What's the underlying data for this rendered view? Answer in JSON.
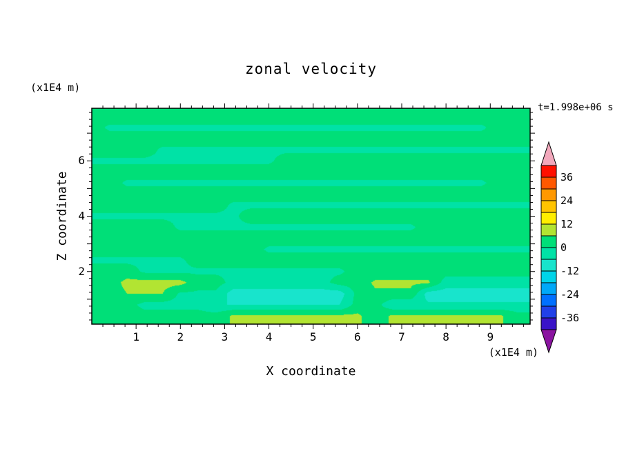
{
  "title": "zonal velocity",
  "time_label": "t=1.998e+06 s",
  "x_axis": {
    "label": "X coordinate",
    "unit": "(x1E4 m)",
    "ticks": [
      1,
      2,
      3,
      4,
      5,
      6,
      7,
      8,
      9
    ],
    "tick_labels": [
      "1",
      "2",
      "3",
      "4",
      "5",
      "6",
      "7",
      "8",
      "9"
    ],
    "minor_step": 0.25
  },
  "z_axis": {
    "label": "Z coordinate",
    "unit": "(x1E4 m)",
    "ticks": [
      2,
      4,
      6
    ],
    "tick_labels": [
      "2",
      "4",
      "6"
    ],
    "major_ticks": [
      1,
      2,
      3,
      4,
      5,
      6,
      7
    ],
    "minor_step": 0.25
  },
  "colorbar": {
    "labels": [
      "36",
      "24",
      "12",
      "0",
      "-12",
      "-24",
      "-36"
    ],
    "label_values": [
      36,
      24,
      12,
      0,
      -12,
      -24,
      -36
    ]
  },
  "colors": {
    "background": "#ffffff",
    "frame": "#000000",
    "text": "#000000"
  },
  "chart_data": {
    "type": "heatmap",
    "title": "zonal velocity",
    "xlabel": "X coordinate (x1E4 m)",
    "ylabel": "Z coordinate (x1E4 m)",
    "time": "t=1.998e+06 s",
    "xlim": [
      0,
      9.9
    ],
    "zlim": [
      0.1,
      7.9
    ],
    "levels": [
      -42,
      -36,
      -30,
      -24,
      -18,
      -12,
      -6,
      0,
      6,
      12,
      18,
      24,
      30,
      36,
      42
    ],
    "colors": [
      "#3a14c8",
      "#2040e8",
      "#0070ff",
      "#00a8f8",
      "#00d4e8",
      "#18e4cc",
      "#00e2a6",
      "#00df78",
      "#b2e432",
      "#ffee00",
      "#ffc400",
      "#ff9800",
      "#ff5800",
      "#ff1000"
    ],
    "under_color": "#8a14a0",
    "over_color": "#f2a8bc",
    "x": [
      0,
      0.4,
      0.8,
      1.2,
      1.6,
      2,
      2.4,
      2.8,
      3.2,
      3.6,
      4,
      4.4,
      4.8,
      5.2,
      5.6,
      6,
      6.4,
      6.8,
      7.2,
      7.6,
      8,
      8.4,
      8.8,
      9.2,
      9.6
    ],
    "z": [
      7.6,
      7.2,
      6.8,
      6.4,
      6,
      5.6,
      5.2,
      4.8,
      4.4,
      4,
      3.6,
      3.2,
      2.8,
      2.4,
      2,
      1.6,
      1.2,
      0.8,
      0.4
    ],
    "values": [
      [
        2.5,
        2.5,
        2.5,
        2.5,
        2.5,
        2.5,
        2.5,
        2.5,
        2.5,
        2.5,
        2.5,
        2.5,
        2.5,
        2.5,
        2.5,
        2.5,
        2.5,
        2.5,
        2.5,
        2.5,
        2.5,
        2.5,
        2.5,
        2.5,
        2.5
      ],
      [
        2.5,
        -1,
        -1,
        -1,
        -1,
        -1,
        -1,
        -1,
        -1,
        -1,
        -1,
        -1,
        -1,
        -1,
        -1,
        -1,
        -1,
        -1,
        -1,
        -1,
        -1,
        -1,
        -1,
        2.5,
        2.5
      ],
      [
        2.5,
        2.5,
        2.5,
        2.5,
        2.5,
        2.5,
        2.5,
        2.5,
        2.5,
        2.5,
        2.5,
        2.5,
        2.5,
        2.5,
        2.5,
        2.5,
        2.5,
        2.5,
        2.5,
        2.5,
        2.5,
        2.5,
        2.5,
        2.5,
        2.5
      ],
      [
        2.5,
        2.5,
        2.5,
        2.5,
        -1,
        -1,
        -1,
        -1,
        -1,
        -1,
        -1,
        -1,
        -1,
        -1,
        -1,
        -1,
        -1,
        -1,
        -1,
        -1,
        -1,
        -1,
        -1,
        -1,
        -1
      ],
      [
        -1,
        -1,
        -1,
        -1,
        -1,
        -1,
        -1,
        -1,
        -1,
        -1,
        -1,
        2.5,
        2.5,
        2.5,
        2.5,
        2.5,
        2.5,
        2.5,
        2.5,
        2.5,
        2.5,
        2.5,
        2.5,
        2.5,
        2.5
      ],
      [
        2.5,
        2.5,
        2.5,
        2.5,
        2.5,
        2.5,
        2.5,
        2.5,
        2.5,
        2.5,
        2.5,
        2.5,
        2.5,
        2.5,
        2.5,
        2.5,
        2.5,
        2.5,
        2.5,
        2.5,
        2.5,
        2.5,
        2.5,
        2.5,
        2.5
      ],
      [
        2.5,
        2.5,
        -1,
        -1,
        -1,
        -1,
        -1,
        -1,
        -1,
        -1,
        -1,
        -1,
        -1,
        -1,
        -1,
        -1,
        -1,
        -1,
        -1,
        -1,
        -1,
        -1,
        -1,
        2.5,
        2.5
      ],
      [
        2.5,
        2.5,
        2.5,
        2.5,
        2.5,
        2.5,
        2.5,
        2.5,
        2.5,
        2.5,
        2.5,
        2.5,
        2.5,
        2.5,
        2.5,
        2.5,
        2.5,
        2.5,
        2.5,
        2.5,
        2.5,
        2.5,
        2.5,
        2.5,
        2.5
      ],
      [
        2.5,
        2.5,
        2.5,
        2.5,
        2.5,
        2.5,
        2.5,
        2.5,
        -1,
        -1,
        -1,
        -1,
        -1,
        -1,
        -1,
        -1,
        -1,
        -1,
        -1,
        -1,
        -1,
        -1,
        -1,
        -1,
        -1
      ],
      [
        -1,
        -1,
        -1,
        -1,
        -1,
        -1,
        -1,
        -1,
        -1,
        2.5,
        2.5,
        2.5,
        2.5,
        2.5,
        2.5,
        2.5,
        2.5,
        2.5,
        2.5,
        2.5,
        2.5,
        2.5,
        2.5,
        2.5,
        2.5
      ],
      [
        2.5,
        2.5,
        2.5,
        2.5,
        2.5,
        -1,
        -1,
        -1,
        -1,
        -1,
        -1,
        -1,
        -1,
        -1,
        -1,
        -1,
        -1,
        -1,
        -1,
        2.5,
        2.5,
        2.5,
        2.5,
        2.5,
        2.5
      ],
      [
        2.5,
        2.5,
        2.5,
        2.5,
        2.5,
        2.5,
        2.5,
        2.5,
        2.5,
        2.5,
        2.5,
        2.5,
        2.5,
        2.5,
        2.5,
        2.5,
        2.5,
        2.5,
        2.5,
        2.5,
        2.5,
        2.5,
        2.5,
        2.5,
        2.5
      ],
      [
        2.5,
        2.5,
        2.5,
        2.5,
        2.5,
        2.5,
        2.5,
        2.5,
        2.5,
        2.5,
        -1,
        -1,
        -1,
        -1,
        -1,
        -1,
        -1,
        -1,
        -1,
        -1,
        -1,
        -1,
        -1,
        -1,
        -1
      ],
      [
        -1,
        -1,
        -1,
        -1,
        -1,
        -1,
        2.5,
        2.5,
        2.5,
        2.5,
        2.5,
        2.5,
        2.5,
        2.5,
        2.5,
        2.5,
        2.5,
        2.5,
        2.5,
        2.5,
        2.5,
        2.5,
        2.5,
        2.5,
        2.5
      ],
      [
        2.5,
        2.5,
        2.5,
        -1,
        -1,
        -1,
        -1,
        -1,
        -1,
        -1,
        -1,
        -1,
        -1,
        -1,
        -1,
        2.5,
        2.5,
        2.5,
        2.5,
        2.5,
        2.5,
        2.5,
        2.5,
        2.5,
        2.5
      ],
      [
        2.5,
        2.5,
        8,
        8,
        8,
        8,
        2.5,
        2.5,
        -2,
        -2,
        -2,
        -2,
        -2,
        -2,
        2.5,
        2.5,
        7,
        7,
        7,
        7,
        -3,
        -3,
        -3,
        -3,
        -3
      ],
      [
        2.5,
        2.5,
        6,
        6,
        6,
        -1,
        -1,
        -1,
        -9,
        -9,
        -9,
        -9,
        -9,
        -9,
        -9,
        2,
        5,
        5,
        5,
        -9,
        -9,
        -9,
        -9,
        -9,
        -9
      ],
      [
        2.5,
        2.5,
        2.5,
        -2,
        -2,
        -2,
        -2,
        -6,
        -6,
        -6,
        -6,
        -6,
        -6,
        -6,
        -6,
        2.5,
        2.5,
        -5,
        -5,
        -5,
        -5,
        -5,
        -5,
        -5,
        -5
      ],
      [
        2.5,
        2.5,
        2.5,
        2.5,
        2.5,
        2.5,
        2.5,
        2.5,
        7,
        7,
        7,
        7,
        7,
        7,
        7,
        7,
        2.5,
        7,
        7,
        7,
        7,
        7,
        7,
        7,
        2.5
      ]
    ]
  }
}
